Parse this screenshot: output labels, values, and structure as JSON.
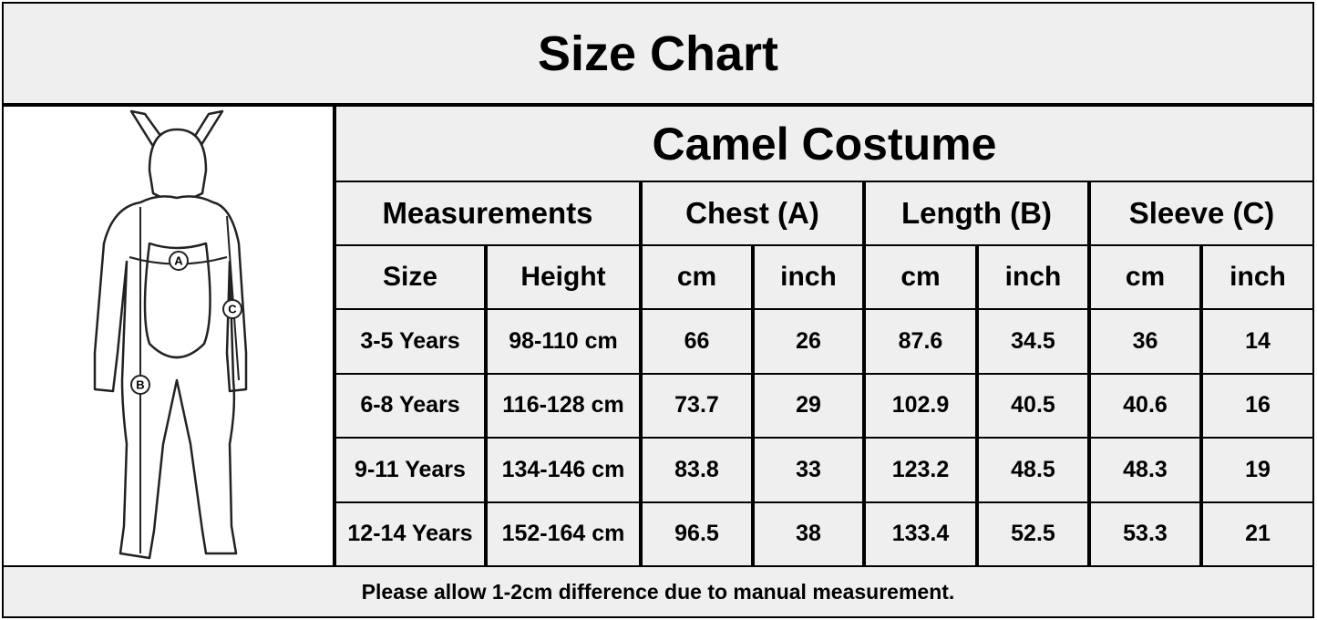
{
  "title": "Size Chart",
  "figure": {
    "labels": [
      "A",
      "B",
      "C"
    ]
  },
  "table": {
    "title": "Camel Costume",
    "groups": [
      "Measurements",
      "Chest (A)",
      "Length (B)",
      "Sleeve (C)"
    ],
    "columns": [
      "Size",
      "Height",
      "cm",
      "inch",
      "cm",
      "inch",
      "cm",
      "inch"
    ],
    "rows": [
      [
        "3-5 Years",
        "98-110 cm",
        "66",
        "26",
        "87.6",
        "34.5",
        "36",
        "14"
      ],
      [
        "6-8 Years",
        "116-128 cm",
        "73.7",
        "29",
        "102.9",
        "40.5",
        "40.6",
        "16"
      ],
      [
        "9-11 Years",
        "134-146 cm",
        "83.8",
        "33",
        "123.2",
        "48.5",
        "48.3",
        "19"
      ],
      [
        "12-14 Years",
        "152-164 cm",
        "96.5",
        "38",
        "133.4",
        "52.5",
        "53.3",
        "21"
      ]
    ]
  },
  "note": "Please allow 1-2cm difference due to manual measurement."
}
